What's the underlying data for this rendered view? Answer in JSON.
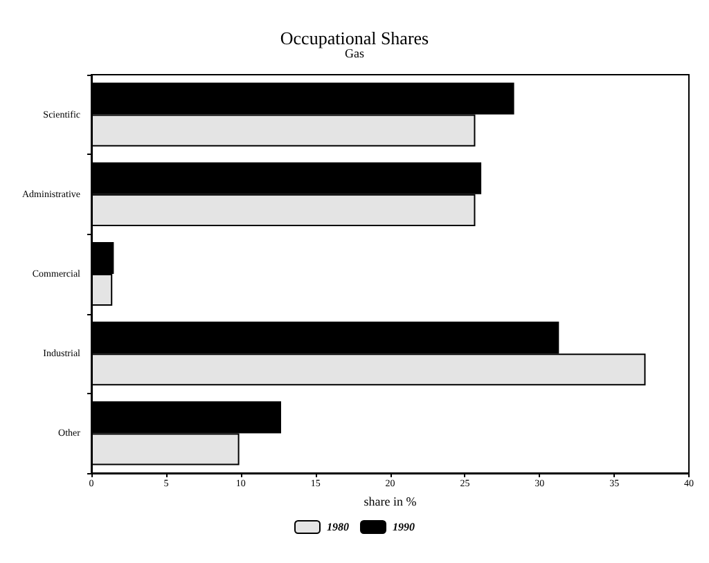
{
  "chart_data": {
    "type": "bar",
    "orientation": "horizontal",
    "title": "Occupational Shares",
    "subtitle": "Gas",
    "xlabel": "share in %",
    "categories": [
      "Scientific",
      "Administrative",
      "Commercial",
      "Industrial",
      "Other"
    ],
    "series": [
      {
        "name": "1980",
        "color": "#e4e4e4",
        "values": [
          25.7,
          25.7,
          1.4,
          37.1,
          9.9
        ]
      },
      {
        "name": "1990",
        "color": "#000000",
        "values": [
          28.3,
          26.1,
          1.5,
          31.3,
          12.7
        ]
      }
    ],
    "xlim": [
      0,
      40
    ],
    "xticks": [
      0,
      5,
      10,
      15,
      20,
      25,
      30,
      35,
      40
    ],
    "grid": false,
    "legend": "bottom"
  }
}
